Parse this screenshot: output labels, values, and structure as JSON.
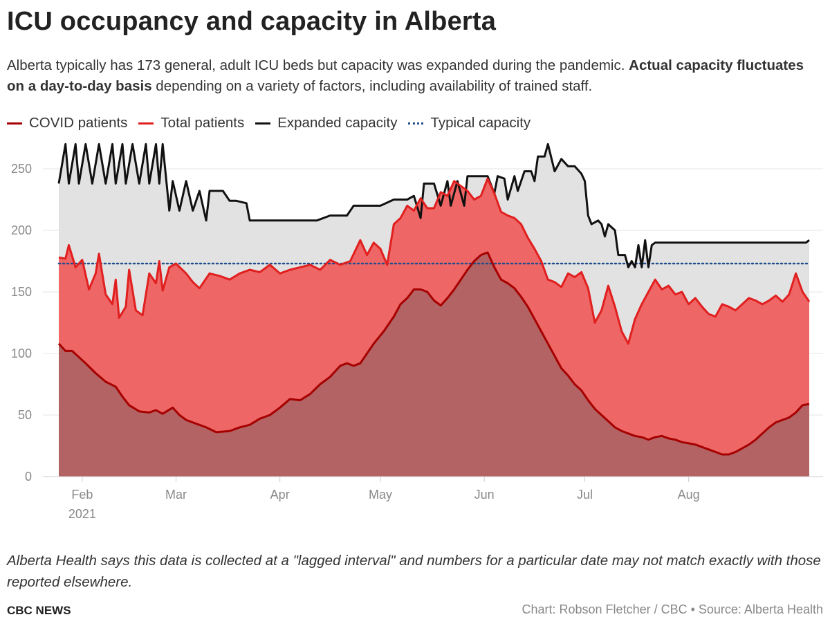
{
  "header": {
    "title": "ICU occupancy and capacity in Alberta",
    "subtitle_plain": "Alberta typically has 173 general, adult ICU beds but capacity was expanded during the pandemic. ",
    "subtitle_bold": "Actual capacity fluctuates on a day-to-day basis",
    "subtitle_tail": " depending on a variety of factors, including availability of trained staff."
  },
  "legend": [
    {
      "label": "COVID patients",
      "color": "#a60000",
      "style": "solid"
    },
    {
      "label": "Total patients",
      "color": "#e11f1f",
      "style": "solid"
    },
    {
      "label": "Expanded capacity",
      "color": "#111111",
      "style": "solid"
    },
    {
      "label": "Typical capacity",
      "color": "#1f4e8c",
      "style": "dotted"
    }
  ],
  "chart_data": {
    "type": "area",
    "title": "ICU occupancy and capacity in Alberta",
    "xlabel": "",
    "ylabel": "",
    "ylim": [
      0,
      280
    ],
    "yticks": [
      0,
      50,
      100,
      150,
      200,
      250
    ],
    "x_start": "2021-01-25",
    "x_end": "2021-08-26",
    "x_unit": "days since 2021-01-25",
    "xticks": [
      {
        "day": 7,
        "label": "Feb",
        "sublabel": "2021"
      },
      {
        "day": 35,
        "label": "Mar",
        "sublabel": ""
      },
      {
        "day": 66,
        "label": "Apr",
        "sublabel": ""
      },
      {
        "day": 96,
        "label": "May",
        "sublabel": ""
      },
      {
        "day": 127,
        "label": "Jun",
        "sublabel": ""
      },
      {
        "day": 157,
        "label": "Jul",
        "sublabel": ""
      },
      {
        "day": 188,
        "label": "Aug",
        "sublabel": ""
      }
    ],
    "typical_capacity": 173,
    "series": [
      {
        "name": "COVID patients",
        "color": "#a60000",
        "points": [
          [
            0,
            108
          ],
          [
            2,
            102
          ],
          [
            4,
            102
          ],
          [
            6,
            97
          ],
          [
            8,
            92
          ],
          [
            11,
            84
          ],
          [
            14,
            77
          ],
          [
            17,
            73
          ],
          [
            19,
            65
          ],
          [
            21,
            58
          ],
          [
            24,
            53
          ],
          [
            27,
            52
          ],
          [
            29,
            54
          ],
          [
            31,
            51
          ],
          [
            34,
            56
          ],
          [
            36,
            50
          ],
          [
            38,
            46
          ],
          [
            41,
            43
          ],
          [
            44,
            40
          ],
          [
            47,
            36
          ],
          [
            51,
            37
          ],
          [
            54,
            40
          ],
          [
            57,
            42
          ],
          [
            60,
            47
          ],
          [
            63,
            50
          ],
          [
            66,
            56
          ],
          [
            69,
            63
          ],
          [
            72,
            62
          ],
          [
            75,
            67
          ],
          [
            78,
            75
          ],
          [
            81,
            81
          ],
          [
            84,
            90
          ],
          [
            86,
            92
          ],
          [
            88,
            90
          ],
          [
            90,
            92
          ],
          [
            92,
            100
          ],
          [
            94,
            108
          ],
          [
            97,
            118
          ],
          [
            100,
            130
          ],
          [
            102,
            140
          ],
          [
            104,
            145
          ],
          [
            106,
            152
          ],
          [
            108,
            152
          ],
          [
            110,
            150
          ],
          [
            112,
            143
          ],
          [
            114,
            139
          ],
          [
            116,
            145
          ],
          [
            118,
            152
          ],
          [
            120,
            160
          ],
          [
            122,
            168
          ],
          [
            124,
            175
          ],
          [
            126,
            180
          ],
          [
            128,
            182
          ],
          [
            130,
            170
          ],
          [
            132,
            160
          ],
          [
            134,
            157
          ],
          [
            136,
            153
          ],
          [
            138,
            146
          ],
          [
            140,
            138
          ],
          [
            142,
            128
          ],
          [
            144,
            118
          ],
          [
            146,
            108
          ],
          [
            148,
            98
          ],
          [
            150,
            88
          ],
          [
            152,
            82
          ],
          [
            154,
            75
          ],
          [
            156,
            70
          ],
          [
            158,
            62
          ],
          [
            160,
            55
          ],
          [
            162,
            50
          ],
          [
            164,
            45
          ],
          [
            166,
            40
          ],
          [
            168,
            37
          ],
          [
            170,
            35
          ],
          [
            172,
            33
          ],
          [
            174,
            32
          ],
          [
            176,
            30
          ],
          [
            178,
            32
          ],
          [
            180,
            33
          ],
          [
            182,
            31
          ],
          [
            184,
            30
          ],
          [
            186,
            28
          ],
          [
            188,
            27
          ],
          [
            190,
            26
          ],
          [
            192,
            24
          ],
          [
            194,
            22
          ],
          [
            196,
            20
          ],
          [
            198,
            18
          ],
          [
            200,
            18
          ],
          [
            202,
            20
          ],
          [
            204,
            23
          ],
          [
            206,
            26
          ],
          [
            208,
            30
          ],
          [
            210,
            35
          ],
          [
            212,
            40
          ],
          [
            214,
            44
          ],
          [
            216,
            46
          ],
          [
            218,
            48
          ],
          [
            220,
            52
          ],
          [
            222,
            58
          ],
          [
            224,
            59
          ]
        ]
      },
      {
        "name": "Total patients",
        "color": "#e11f1f",
        "points": [
          [
            0,
            178
          ],
          [
            2,
            177
          ],
          [
            3,
            188
          ],
          [
            5,
            170
          ],
          [
            7,
            176
          ],
          [
            9,
            152
          ],
          [
            11,
            165
          ],
          [
            12,
            181
          ],
          [
            14,
            148
          ],
          [
            16,
            140
          ],
          [
            17,
            160
          ],
          [
            18,
            129
          ],
          [
            20,
            138
          ],
          [
            21,
            168
          ],
          [
            23,
            135
          ],
          [
            25,
            131
          ],
          [
            27,
            165
          ],
          [
            29,
            157
          ],
          [
            30,
            175
          ],
          [
            31,
            151
          ],
          [
            33,
            170
          ],
          [
            35,
            173
          ],
          [
            38,
            165
          ],
          [
            40,
            158
          ],
          [
            42,
            153
          ],
          [
            45,
            165
          ],
          [
            48,
            163
          ],
          [
            51,
            160
          ],
          [
            54,
            165
          ],
          [
            57,
            168
          ],
          [
            60,
            166
          ],
          [
            63,
            172
          ],
          [
            66,
            165
          ],
          [
            69,
            168
          ],
          [
            72,
            170
          ],
          [
            75,
            172
          ],
          [
            78,
            168
          ],
          [
            81,
            176
          ],
          [
            84,
            172
          ],
          [
            87,
            175
          ],
          [
            90,
            192
          ],
          [
            92,
            180
          ],
          [
            94,
            190
          ],
          [
            96,
            185
          ],
          [
            98,
            172
          ],
          [
            100,
            205
          ],
          [
            102,
            210
          ],
          [
            104,
            220
          ],
          [
            106,
            216
          ],
          [
            108,
            226
          ],
          [
            110,
            218
          ],
          [
            112,
            218
          ],
          [
            114,
            231
          ],
          [
            116,
            228
          ],
          [
            118,
            240
          ],
          [
            120,
            236
          ],
          [
            122,
            232
          ],
          [
            124,
            225
          ],
          [
            126,
            228
          ],
          [
            128,
            242
          ],
          [
            130,
            230
          ],
          [
            132,
            215
          ],
          [
            134,
            212
          ],
          [
            136,
            210
          ],
          [
            138,
            205
          ],
          [
            140,
            194
          ],
          [
            142,
            185
          ],
          [
            144,
            175
          ],
          [
            146,
            160
          ],
          [
            148,
            158
          ],
          [
            150,
            154
          ],
          [
            152,
            165
          ],
          [
            154,
            162
          ],
          [
            156,
            166
          ],
          [
            158,
            153
          ],
          [
            160,
            125
          ],
          [
            162,
            135
          ],
          [
            164,
            155
          ],
          [
            166,
            138
          ],
          [
            168,
            118
          ],
          [
            170,
            108
          ],
          [
            172,
            128
          ],
          [
            174,
            140
          ],
          [
            176,
            150
          ],
          [
            178,
            160
          ],
          [
            180,
            152
          ],
          [
            182,
            155
          ],
          [
            184,
            148
          ],
          [
            186,
            150
          ],
          [
            188,
            140
          ],
          [
            190,
            145
          ],
          [
            192,
            138
          ],
          [
            194,
            132
          ],
          [
            196,
            130
          ],
          [
            198,
            140
          ],
          [
            200,
            138
          ],
          [
            202,
            135
          ],
          [
            204,
            140
          ],
          [
            206,
            145
          ],
          [
            208,
            143
          ],
          [
            210,
            140
          ],
          [
            212,
            143
          ],
          [
            214,
            147
          ],
          [
            216,
            142
          ],
          [
            218,
            148
          ],
          [
            220,
            165
          ],
          [
            222,
            150
          ],
          [
            224,
            142
          ]
        ]
      },
      {
        "name": "Expanded capacity",
        "color": "#111111",
        "points": [
          [
            0,
            238
          ],
          [
            2,
            270
          ],
          [
            3,
            238
          ],
          [
            5,
            270
          ],
          [
            6,
            238
          ],
          [
            8,
            270
          ],
          [
            10,
            238
          ],
          [
            12,
            270
          ],
          [
            14,
            238
          ],
          [
            16,
            270
          ],
          [
            17,
            238
          ],
          [
            19,
            270
          ],
          [
            20,
            238
          ],
          [
            22,
            270
          ],
          [
            24,
            238
          ],
          [
            26,
            270
          ],
          [
            27,
            238
          ],
          [
            29,
            270
          ],
          [
            30,
            238
          ],
          [
            31,
            270
          ],
          [
            33,
            216
          ],
          [
            34,
            240
          ],
          [
            36,
            216
          ],
          [
            38,
            240
          ],
          [
            40,
            216
          ],
          [
            42,
            232
          ],
          [
            44,
            208
          ],
          [
            45,
            232
          ],
          [
            47,
            232
          ],
          [
            49,
            232
          ],
          [
            51,
            224
          ],
          [
            53,
            224
          ],
          [
            56,
            222
          ],
          [
            57,
            208
          ],
          [
            66,
            208
          ],
          [
            77,
            208
          ],
          [
            81,
            212
          ],
          [
            86,
            212
          ],
          [
            88,
            220
          ],
          [
            96,
            220
          ],
          [
            100,
            225
          ],
          [
            104,
            225
          ],
          [
            106,
            228
          ],
          [
            108,
            210
          ],
          [
            109,
            238
          ],
          [
            112,
            238
          ],
          [
            114,
            220
          ],
          [
            116,
            240
          ],
          [
            117,
            220
          ],
          [
            119,
            240
          ],
          [
            121,
            220
          ],
          [
            122,
            244
          ],
          [
            124,
            244
          ],
          [
            128,
            244
          ],
          [
            130,
            230
          ],
          [
            131,
            244
          ],
          [
            133,
            242
          ],
          [
            134,
            225
          ],
          [
            136,
            244
          ],
          [
            137,
            232
          ],
          [
            139,
            248
          ],
          [
            141,
            248
          ],
          [
            142,
            240
          ],
          [
            143,
            260
          ],
          [
            145,
            260
          ],
          [
            146,
            270
          ],
          [
            148,
            248
          ],
          [
            150,
            258
          ],
          [
            152,
            252
          ],
          [
            154,
            252
          ],
          [
            156,
            246
          ],
          [
            157,
            240
          ],
          [
            158,
            212
          ],
          [
            159,
            205
          ],
          [
            161,
            208
          ],
          [
            162,
            205
          ],
          [
            163,
            195
          ],
          [
            164,
            205
          ],
          [
            166,
            200
          ],
          [
            167,
            180
          ],
          [
            169,
            180
          ],
          [
            170,
            170
          ],
          [
            171,
            175
          ],
          [
            172,
            170
          ],
          [
            173,
            188
          ],
          [
            174,
            170
          ],
          [
            175,
            192
          ],
          [
            176,
            170
          ],
          [
            177,
            188
          ],
          [
            178,
            190
          ],
          [
            180,
            190
          ],
          [
            200,
            190
          ],
          [
            210,
            190
          ],
          [
            220,
            190
          ],
          [
            223,
            190
          ],
          [
            224,
            192
          ]
        ]
      }
    ]
  },
  "footer": {
    "note": "Alberta Health says this data is collected at a \"lagged interval\" and numbers for a particular date may not match exactly with those reported elsewhere.",
    "brand": "CBC NEWS",
    "credit": "Chart: Robson Fletcher / CBC • Source: Alberta Health"
  }
}
